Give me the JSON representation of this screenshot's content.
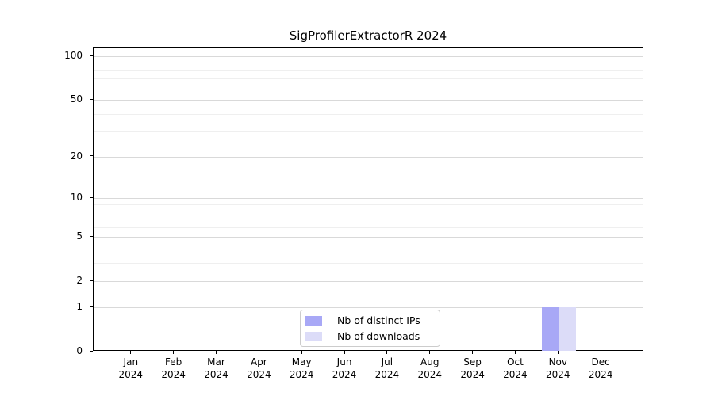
{
  "chart_data": {
    "type": "bar",
    "title": "SigProfilerExtractorR 2024",
    "categories": [
      "Jan",
      "Feb",
      "Mar",
      "Apr",
      "May",
      "Jun",
      "Jul",
      "Aug",
      "Sep",
      "Oct",
      "Nov",
      "Dec"
    ],
    "x_year": "2024",
    "series": [
      {
        "name": "Nb of distinct IPs",
        "color": "#a8a8f6",
        "values": [
          0,
          0,
          0,
          0,
          0,
          0,
          0,
          0,
          0,
          0,
          1,
          0
        ]
      },
      {
        "name": "Nb of downloads",
        "color": "#dcdcf8",
        "values": [
          0,
          0,
          0,
          0,
          0,
          0,
          0,
          0,
          0,
          0,
          1,
          0
        ]
      }
    ],
    "yscale": "log1p",
    "ylim": [
      0,
      113
    ],
    "y_major_ticks": [
      0,
      1,
      2,
      5,
      10,
      20,
      50,
      100
    ],
    "y_minor_gridlines": [
      3,
      4,
      6,
      7,
      8,
      9,
      30,
      40,
      60,
      70,
      80,
      90
    ],
    "grid": "horizontal-only",
    "legend_position": "lower center"
  }
}
